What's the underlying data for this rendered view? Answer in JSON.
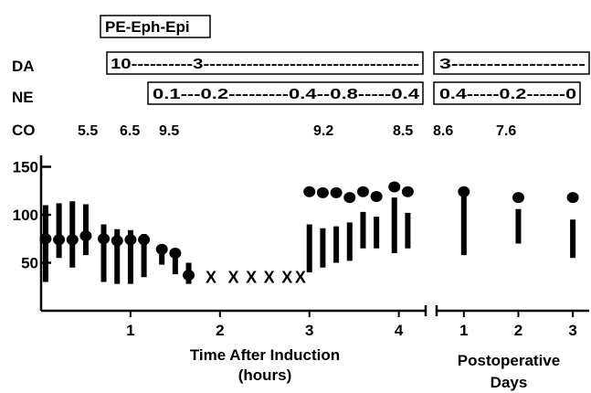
{
  "annotations": {
    "drug_box_label": "PE-Eph-Epi",
    "rows": [
      {
        "label": "DA",
        "intraop_text": "10----------3-----------------------------------",
        "postop_text": "3-------------------"
      },
      {
        "label": "NE",
        "intraop_text": "0.1---0.2---------0.4--0.8-----0.4",
        "postop_text": "0.4-----0.2------0"
      },
      {
        "label": "CO",
        "values": [
          "5.5",
          "6.5",
          "9.5",
          "9.2",
          "8.5",
          "8.6",
          "7.6"
        ]
      }
    ]
  },
  "chart_data": {
    "type": "scatter",
    "panels": [
      {
        "name": "intraoperative",
        "xlabel": "Time After Induction\n(hours)",
        "xticks": [
          "1",
          "2",
          "3",
          "4"
        ],
        "xlim": [
          0,
          4.3
        ],
        "yticks": [
          "150",
          "100",
          "50"
        ],
        "ylim": [
          0,
          175
        ],
        "mean_points": [
          {
            "x": 0.05,
            "y": 75
          },
          {
            "x": 0.2,
            "y": 74
          },
          {
            "x": 0.35,
            "y": 74
          },
          {
            "x": 0.5,
            "y": 78
          },
          {
            "x": 0.7,
            "y": 75
          },
          {
            "x": 0.85,
            "y": 73
          },
          {
            "x": 1.0,
            "y": 74
          },
          {
            "x": 1.15,
            "y": 74
          },
          {
            "x": 1.35,
            "y": 64
          },
          {
            "x": 1.5,
            "y": 60
          },
          {
            "x": 1.65,
            "y": 37
          },
          {
            "x": 3.0,
            "y": 124
          },
          {
            "x": 3.15,
            "y": 123
          },
          {
            "x": 3.3,
            "y": 123
          },
          {
            "x": 3.45,
            "y": 118
          },
          {
            "x": 3.6,
            "y": 124
          },
          {
            "x": 3.75,
            "y": 119
          },
          {
            "x": 3.95,
            "y": 129
          },
          {
            "x": 4.1,
            "y": 124
          }
        ],
        "unmeasurable_marker": "X",
        "unmeasurable_x": [
          1.9,
          2.15,
          2.35,
          2.55,
          2.75,
          2.9
        ],
        "unmeasurable_y": 35,
        "ranges": [
          {
            "x": 0.05,
            "low": 30,
            "high": 110
          },
          {
            "x": 0.2,
            "low": 55,
            "high": 112
          },
          {
            "x": 0.35,
            "low": 45,
            "high": 114
          },
          {
            "x": 0.5,
            "low": 58,
            "high": 111
          },
          {
            "x": 0.7,
            "low": 30,
            "high": 90
          },
          {
            "x": 0.85,
            "low": 28,
            "high": 85
          },
          {
            "x": 1.0,
            "low": 28,
            "high": 84
          },
          {
            "x": 1.15,
            "low": 35,
            "high": 80
          },
          {
            "x": 1.35,
            "low": 48,
            "high": 64
          },
          {
            "x": 1.5,
            "low": 38,
            "high": 60
          },
          {
            "x": 1.65,
            "low": 28,
            "high": 50
          },
          {
            "x": 3.0,
            "low": 40,
            "high": 90
          },
          {
            "x": 3.15,
            "low": 45,
            "high": 86
          },
          {
            "x": 3.3,
            "low": 50,
            "high": 88
          },
          {
            "x": 3.45,
            "low": 52,
            "high": 92
          },
          {
            "x": 3.6,
            "low": 65,
            "high": 103
          },
          {
            "x": 3.75,
            "low": 65,
            "high": 98
          },
          {
            "x": 3.95,
            "low": 60,
            "high": 118
          },
          {
            "x": 4.1,
            "low": 65,
            "high": 102
          }
        ]
      },
      {
        "name": "postoperative",
        "xlabel": "Postoperative\nDays",
        "xticks": [
          "1",
          "2",
          "3"
        ],
        "xlim": [
          0.5,
          3.3
        ],
        "mean_points": [
          {
            "x": 1,
            "y": 124
          },
          {
            "x": 2,
            "y": 118
          },
          {
            "x": 3,
            "y": 118
          }
        ],
        "ranges": [
          {
            "x": 1,
            "low": 58,
            "high": 124
          },
          {
            "x": 2,
            "low": 70,
            "high": 106
          },
          {
            "x": 3,
            "low": 55,
            "high": 95
          }
        ]
      }
    ]
  }
}
